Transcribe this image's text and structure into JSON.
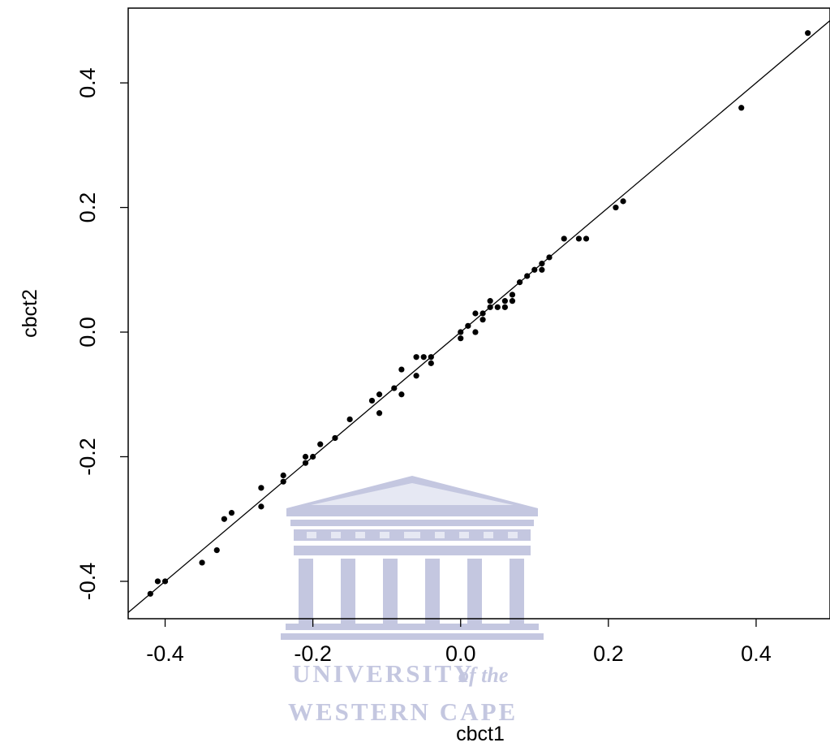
{
  "chart_data": {
    "type": "scatter",
    "title": "",
    "xlabel": "cbct1",
    "ylabel": "cbct2",
    "xlim": [
      -0.45,
      0.5
    ],
    "ylim": [
      -0.46,
      0.52
    ],
    "xticks": [
      -0.4,
      -0.2,
      0.0,
      0.2,
      0.4
    ],
    "xtick_labels": [
      "-0.4",
      "-0.2",
      "0.0",
      "0.2",
      "0.4"
    ],
    "yticks": [
      -0.4,
      -0.2,
      0.0,
      0.2,
      0.4
    ],
    "ytick_labels": [
      "-0.4",
      "-0.2",
      "0.0",
      "0.2",
      "0.4"
    ],
    "grid": false,
    "legend": "none",
    "reference_line": {
      "slope": 1,
      "intercept": 0
    },
    "point_color": "#000000",
    "line_color": "#000000",
    "series": [
      {
        "points": [
          [
            -0.42,
            -0.42
          ],
          [
            -0.41,
            -0.4
          ],
          [
            -0.4,
            -0.4
          ],
          [
            -0.35,
            -0.37
          ],
          [
            -0.33,
            -0.35
          ],
          [
            -0.32,
            -0.3
          ],
          [
            -0.31,
            -0.29
          ],
          [
            -0.27,
            -0.25
          ],
          [
            -0.27,
            -0.28
          ],
          [
            -0.24,
            -0.23
          ],
          [
            -0.24,
            -0.24
          ],
          [
            -0.21,
            -0.2
          ],
          [
            -0.21,
            -0.21
          ],
          [
            -0.2,
            -0.2
          ],
          [
            -0.19,
            -0.18
          ],
          [
            -0.17,
            -0.17
          ],
          [
            -0.15,
            -0.14
          ],
          [
            -0.12,
            -0.11
          ],
          [
            -0.11,
            -0.1
          ],
          [
            -0.11,
            -0.13
          ],
          [
            -0.09,
            -0.09
          ],
          [
            -0.08,
            -0.06
          ],
          [
            -0.08,
            -0.1
          ],
          [
            -0.06,
            -0.04
          ],
          [
            -0.06,
            -0.07
          ],
          [
            -0.05,
            -0.04
          ],
          [
            -0.04,
            -0.04
          ],
          [
            -0.04,
            -0.05
          ],
          [
            0.0,
            0.0
          ],
          [
            0.0,
            -0.01
          ],
          [
            0.01,
            0.01
          ],
          [
            0.02,
            0.0
          ],
          [
            0.02,
            0.03
          ],
          [
            0.03,
            0.02
          ],
          [
            0.03,
            0.03
          ],
          [
            0.04,
            0.04
          ],
          [
            0.04,
            0.05
          ],
          [
            0.05,
            0.04
          ],
          [
            0.06,
            0.04
          ],
          [
            0.06,
            0.05
          ],
          [
            0.07,
            0.05
          ],
          [
            0.07,
            0.06
          ],
          [
            0.08,
            0.08
          ],
          [
            0.09,
            0.09
          ],
          [
            0.1,
            0.1
          ],
          [
            0.11,
            0.1
          ],
          [
            0.11,
            0.11
          ],
          [
            0.12,
            0.12
          ],
          [
            0.14,
            0.15
          ],
          [
            0.16,
            0.15
          ],
          [
            0.17,
            0.15
          ],
          [
            0.21,
            0.2
          ],
          [
            0.22,
            0.21
          ],
          [
            0.38,
            0.36
          ],
          [
            0.47,
            0.48
          ]
        ]
      }
    ]
  },
  "watermark": {
    "line1": "UNIVERSITY",
    "line1_suffix": "of the",
    "line2": "WESTERN CAPE",
    "color": "#c4c7e0",
    "icon": "university-building-icon"
  }
}
